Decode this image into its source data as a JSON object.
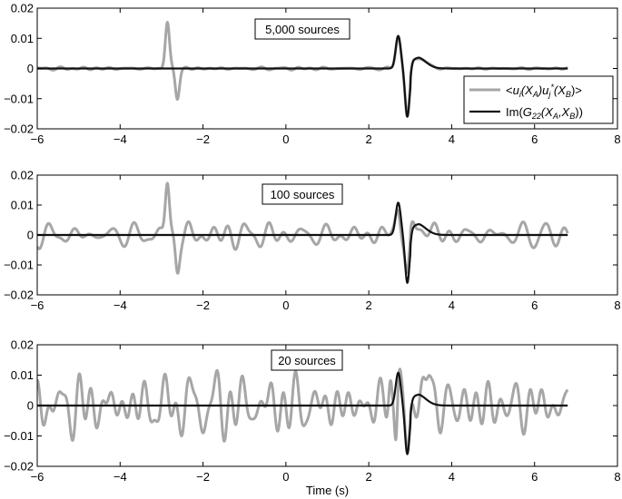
{
  "chart_data": [
    {
      "type": "line",
      "annotation": "5,000 sources",
      "xlim": [
        -6,
        8
      ],
      "ylim": [
        -0.02,
        0.02
      ],
      "xticks": [
        "−6",
        "−4",
        "−2",
        "0",
        "2",
        "4",
        "6",
        "8"
      ],
      "yticks": [
        "0.02",
        "0.01",
        "0",
        "−0.01",
        "−0.02"
      ],
      "xlabel": "",
      "legend": {
        "placement": "right",
        "entries": [
          {
            "label": "<ui(XA)uj*(XB)>",
            "color": "#a6a6a6"
          },
          {
            "label": "Im(G22(XA,XB))",
            "color": "#111111"
          }
        ]
      },
      "series": [
        {
          "name": "<ui(XA)uj*(XB)>",
          "color": "#a6a6a6",
          "noise_amp": 0.0005,
          "noise_seed": 3,
          "spikes": [
            {
              "t": -2.86,
              "a": 0.0155,
              "w": 0.07
            },
            {
              "t": -2.62,
              "a": -0.0098,
              "w": 0.07
            }
          ],
          "x": [
            -6,
            6.8
          ]
        },
        {
          "name": "Im(G22(XA,XB))",
          "color": "#111111",
          "x": [
            -6,
            6.8
          ]
        }
      ]
    },
    {
      "type": "line",
      "annotation": "100 sources",
      "xlim": [
        -6,
        8
      ],
      "ylim": [
        -0.02,
        0.02
      ],
      "xticks": [
        "−6",
        "−4",
        "−2",
        "0",
        "2",
        "4",
        "6",
        "8"
      ],
      "yticks": [
        "0.02",
        "0.01",
        "0",
        "−0.01",
        "−0.02"
      ],
      "xlabel": "",
      "series": [
        {
          "name": "<ui(XA)uj*(XB)>",
          "color": "#a6a6a6",
          "noise_amp": 0.0042,
          "noise_seed": 11,
          "spikes": [
            {
              "t": -2.86,
              "a": 0.018,
              "w": 0.07
            },
            {
              "t": -2.62,
              "a": -0.0105,
              "w": 0.07
            }
          ],
          "x": [
            -6,
            6.8
          ]
        },
        {
          "name": "Im(G22(XA,XB))",
          "color": "#111111",
          "x": [
            -6,
            6.8
          ]
        }
      ]
    },
    {
      "type": "line",
      "annotation": "20 sources",
      "xlim": [
        -6,
        8
      ],
      "ylim": [
        -0.02,
        0.02
      ],
      "xticks": [
        "−6",
        "−4",
        "−2",
        "0",
        "2",
        "4",
        "6",
        "8"
      ],
      "yticks": [
        "0.02",
        "0.01",
        "0",
        "−0.01",
        "−0.02"
      ],
      "xlabel": "Time (s)",
      "series": [
        {
          "name": "<ui(XA)uj*(XB)>",
          "color": "#a6a6a6",
          "noise_amp": 0.0105,
          "noise_seed": 27,
          "spikes": [
            {
              "t": 2.52,
              "a": 0.012,
              "w": 0.06
            },
            {
              "t": 2.66,
              "a": -0.017,
              "w": 0.05
            },
            {
              "t": 3.45,
              "a": 0.01,
              "w": 0.08
            }
          ],
          "x": [
            -6,
            6.8
          ]
        },
        {
          "name": "Im(G22(XA,XB))",
          "color": "#111111",
          "x": [
            -6,
            6.8
          ]
        }
      ]
    }
  ]
}
